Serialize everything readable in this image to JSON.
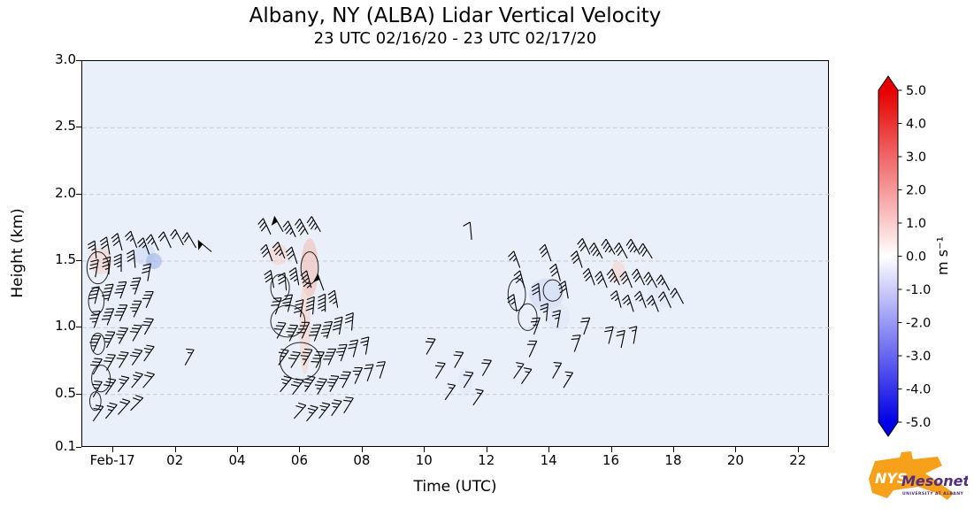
{
  "figure": {
    "title": "Albany, NY (ALBA) Lidar Vertical Velocity",
    "subtitle": "23 UTC 02/16/20 - 23 UTC 02/17/20"
  },
  "axes": {
    "xlabel": "Time (UTC)",
    "ylabel": "Height (km)",
    "x_ticks": [
      {
        "t": 1,
        "label": "Feb-17"
      },
      {
        "t": 3,
        "label": "02"
      },
      {
        "t": 5,
        "label": "04"
      },
      {
        "t": 7,
        "label": "06"
      },
      {
        "t": 9,
        "label": "08"
      },
      {
        "t": 11,
        "label": "10"
      },
      {
        "t": 13,
        "label": "12"
      },
      {
        "t": 15,
        "label": "14"
      },
      {
        "t": 17,
        "label": "16"
      },
      {
        "t": 19,
        "label": "18"
      },
      {
        "t": 21,
        "label": "20"
      },
      {
        "t": 23,
        "label": "22"
      }
    ],
    "y_ticks": [
      {
        "v": 0.1,
        "label": "0.1"
      },
      {
        "v": 0.5,
        "label": "0.5"
      },
      {
        "v": 1.0,
        "label": "1.0"
      },
      {
        "v": 1.5,
        "label": "1.5"
      },
      {
        "v": 2.0,
        "label": "2.0"
      },
      {
        "v": 2.5,
        "label": "2.5"
      },
      {
        "v": 3.0,
        "label": "3.0"
      }
    ]
  },
  "colorbar": {
    "label": "m s⁻¹",
    "top_color": "#e60000",
    "mid_color": "#ffffff",
    "bottom_color": "#0000e6",
    "ticks": [
      {
        "v": 5,
        "label": "5.0"
      },
      {
        "v": 4,
        "label": "4.0"
      },
      {
        "v": 3,
        "label": "3.0"
      },
      {
        "v": 2,
        "label": "2.0"
      },
      {
        "v": 1,
        "label": "1.0"
      },
      {
        "v": 0,
        "label": "0.0"
      },
      {
        "v": -1,
        "label": "-1.0"
      },
      {
        "v": -2,
        "label": "-2.0"
      },
      {
        "v": -3,
        "label": "-3.0"
      },
      {
        "v": -4,
        "label": "-4.0"
      },
      {
        "v": -5,
        "label": "-5.0"
      }
    ]
  },
  "logo": {
    "nys": "NYS",
    "mesonet": "Mesonet",
    "tagline": "UNIVERSITY AT ALBANY",
    "orange": "#f7a11b",
    "purple": "#522d80"
  },
  "chart_data": {
    "type": "wind_barb_time_height",
    "title": "Albany, NY (ALBA) Lidar Vertical Velocity",
    "subtitle": "23 UTC 02/16/20 - 23 UTC 02/17/20",
    "xlabel": "Time (UTC)",
    "ylabel": "Height (km)",
    "x_start": "23 UTC 02/16/20",
    "x_hours_range": [
      0,
      24
    ],
    "ylim": [
      0.1,
      3.0
    ],
    "colormap": "blue-white-red",
    "color_range": [
      -5,
      5
    ],
    "color_units": "m s⁻¹",
    "background_fill": "#e9f0f9",
    "grid": "dashed horizontal at 0.5 km intervals",
    "barb_format": "[hours_after_23UTC_02/16, height_km, staff_angle_deg_ccw_from_east, speed_knots]",
    "barbs": [
      [
        0.35,
        0.3,
        55,
        20
      ],
      [
        0.35,
        0.48,
        60,
        25
      ],
      [
        0.35,
        0.65,
        60,
        30
      ],
      [
        0.35,
        0.82,
        65,
        35
      ],
      [
        0.38,
        1.0,
        70,
        35
      ],
      [
        0.4,
        1.18,
        75,
        40
      ],
      [
        0.42,
        1.38,
        80,
        30
      ],
      [
        0.45,
        1.52,
        95,
        25
      ],
      [
        0.75,
        0.32,
        50,
        25
      ],
      [
        0.75,
        0.5,
        55,
        30
      ],
      [
        0.78,
        0.68,
        60,
        30
      ],
      [
        0.78,
        0.85,
        62,
        35
      ],
      [
        0.8,
        1.02,
        68,
        40
      ],
      [
        0.82,
        1.2,
        72,
        45
      ],
      [
        0.85,
        1.4,
        85,
        35
      ],
      [
        0.88,
        1.55,
        100,
        30
      ],
      [
        1.15,
        0.35,
        48,
        20
      ],
      [
        1.15,
        0.52,
        52,
        25
      ],
      [
        1.18,
        0.7,
        58,
        30
      ],
      [
        1.18,
        0.88,
        60,
        35
      ],
      [
        1.2,
        1.05,
        65,
        40
      ],
      [
        1.22,
        1.22,
        70,
        40
      ],
      [
        1.25,
        1.42,
        90,
        35
      ],
      [
        1.28,
        1.58,
        105,
        30
      ],
      [
        1.55,
        0.38,
        45,
        20
      ],
      [
        1.58,
        0.55,
        50,
        25
      ],
      [
        1.6,
        0.72,
        55,
        30
      ],
      [
        1.62,
        0.9,
        60,
        30
      ],
      [
        1.65,
        1.08,
        64,
        35
      ],
      [
        1.68,
        1.25,
        70,
        35
      ],
      [
        1.7,
        1.45,
        95,
        30
      ],
      [
        1.75,
        1.6,
        110,
        25
      ],
      [
        1.95,
        0.55,
        50,
        20
      ],
      [
        1.98,
        0.75,
        55,
        25
      ],
      [
        2.0,
        0.95,
        60,
        30
      ],
      [
        2.05,
        1.15,
        66,
        30
      ],
      [
        2.1,
        1.35,
        80,
        30
      ],
      [
        2.15,
        1.55,
        110,
        25
      ],
      [
        2.45,
        1.58,
        115,
        25
      ],
      [
        2.85,
        1.6,
        115,
        20
      ],
      [
        3.25,
        1.62,
        118,
        20
      ],
      [
        3.65,
        1.6,
        120,
        20
      ],
      [
        3.3,
        0.72,
        60,
        15
      ],
      [
        4.15,
        1.57,
        140,
        50
      ],
      [
        6.05,
        1.7,
        115,
        30
      ],
      [
        6.45,
        1.72,
        120,
        50
      ],
      [
        6.85,
        1.68,
        115,
        35
      ],
      [
        7.25,
        1.7,
        118,
        40
      ],
      [
        7.65,
        1.72,
        120,
        35
      ],
      [
        6.1,
        1.5,
        110,
        30
      ],
      [
        6.5,
        1.52,
        112,
        35
      ],
      [
        6.9,
        1.48,
        108,
        30
      ],
      [
        6.15,
        1.3,
        100,
        30
      ],
      [
        6.55,
        1.28,
        95,
        30
      ],
      [
        6.95,
        1.32,
        100,
        35
      ],
      [
        7.35,
        1.3,
        105,
        45
      ],
      [
        7.75,
        1.28,
        110,
        50
      ],
      [
        6.2,
        1.1,
        70,
        30
      ],
      [
        6.6,
        1.12,
        75,
        35
      ],
      [
        7.0,
        1.08,
        80,
        40
      ],
      [
        7.4,
        1.1,
        85,
        40
      ],
      [
        7.8,
        1.12,
        90,
        45
      ],
      [
        8.2,
        1.15,
        100,
        35
      ],
      [
        6.25,
        0.92,
        60,
        30
      ],
      [
        6.65,
        0.9,
        62,
        35
      ],
      [
        7.05,
        0.92,
        65,
        40
      ],
      [
        7.45,
        0.9,
        68,
        40
      ],
      [
        7.85,
        0.92,
        72,
        45
      ],
      [
        8.25,
        0.95,
        80,
        40
      ],
      [
        8.65,
        0.98,
        85,
        30
      ],
      [
        6.3,
        0.72,
        55,
        25
      ],
      [
        6.7,
        0.7,
        58,
        30
      ],
      [
        7.1,
        0.72,
        60,
        35
      ],
      [
        7.5,
        0.7,
        62,
        40
      ],
      [
        7.9,
        0.72,
        65,
        40
      ],
      [
        8.3,
        0.75,
        70,
        35
      ],
      [
        8.7,
        0.78,
        75,
        30
      ],
      [
        9.1,
        0.8,
        80,
        25
      ],
      [
        6.35,
        0.52,
        50,
        25
      ],
      [
        6.75,
        0.5,
        52,
        30
      ],
      [
        7.15,
        0.52,
        55,
        35
      ],
      [
        7.55,
        0.5,
        58,
        35
      ],
      [
        7.95,
        0.52,
        60,
        35
      ],
      [
        8.35,
        0.55,
        62,
        30
      ],
      [
        8.75,
        0.58,
        65,
        25
      ],
      [
        9.15,
        0.6,
        70,
        20
      ],
      [
        9.55,
        0.62,
        72,
        20
      ],
      [
        6.8,
        0.32,
        48,
        20
      ],
      [
        7.2,
        0.3,
        50,
        25
      ],
      [
        7.6,
        0.32,
        52,
        25
      ],
      [
        8.0,
        0.34,
        55,
        25
      ],
      [
        8.4,
        0.36,
        58,
        20
      ],
      [
        11.05,
        0.8,
        60,
        20
      ],
      [
        11.35,
        0.62,
        58,
        20
      ],
      [
        11.65,
        0.46,
        55,
        18
      ],
      [
        11.95,
        0.7,
        60,
        22
      ],
      [
        12.25,
        0.55,
        58,
        20
      ],
      [
        12.55,
        0.42,
        55,
        18
      ],
      [
        12.85,
        0.64,
        60,
        20
      ],
      [
        12.5,
        1.66,
        95,
        10
      ],
      [
        13.85,
        0.62,
        55,
        15
      ],
      [
        14.1,
        0.58,
        55,
        15
      ],
      [
        13.95,
        1.12,
        100,
        25
      ],
      [
        14.2,
        1.3,
        105,
        30
      ],
      [
        14.05,
        1.45,
        110,
        25
      ],
      [
        14.5,
        0.95,
        70,
        25
      ],
      [
        14.35,
        0.78,
        65,
        20
      ],
      [
        14.7,
        1.2,
        95,
        30
      ],
      [
        14.9,
        1.05,
        85,
        25
      ],
      [
        15.05,
        1.5,
        110,
        30
      ],
      [
        15.35,
        1.35,
        105,
        30
      ],
      [
        15.6,
        1.22,
        100,
        30
      ],
      [
        15.25,
        1.0,
        80,
        25
      ],
      [
        15.8,
        0.82,
        70,
        20
      ],
      [
        16.05,
        1.45,
        108,
        30
      ],
      [
        15.1,
        0.62,
        60,
        18
      ],
      [
        15.45,
        0.55,
        58,
        15
      ],
      [
        16.3,
        1.55,
        115,
        30
      ],
      [
        16.7,
        1.52,
        118,
        35
      ],
      [
        17.1,
        1.55,
        120,
        35
      ],
      [
        17.5,
        1.52,
        118,
        30
      ],
      [
        17.9,
        1.55,
        120,
        35
      ],
      [
        18.3,
        1.52,
        122,
        30
      ],
      [
        16.45,
        1.32,
        110,
        30
      ],
      [
        16.85,
        1.3,
        112,
        30
      ],
      [
        17.25,
        1.32,
        115,
        35
      ],
      [
        17.65,
        1.3,
        112,
        30
      ],
      [
        18.05,
        1.32,
        115,
        30
      ],
      [
        18.45,
        1.3,
        118,
        30
      ],
      [
        18.85,
        1.28,
        118,
        25
      ],
      [
        17.3,
        1.15,
        105,
        25
      ],
      [
        17.7,
        1.12,
        108,
        25
      ],
      [
        18.1,
        1.15,
        110,
        25
      ],
      [
        18.5,
        1.12,
        112,
        25
      ],
      [
        18.9,
        1.15,
        115,
        20
      ],
      [
        19.3,
        1.18,
        118,
        20
      ],
      [
        16.1,
        0.95,
        70,
        20
      ],
      [
        16.9,
        0.88,
        75,
        20
      ],
      [
        17.3,
        0.85,
        78,
        20
      ],
      [
        17.7,
        0.88,
        80,
        18
      ]
    ],
    "contour_format": "[t_center_h, height_center_km, t_radius_h, height_radius_km]",
    "contours": [
      [
        0.5,
        1.45,
        0.35,
        0.12
      ],
      [
        0.45,
        1.2,
        0.25,
        0.1
      ],
      [
        0.6,
        0.62,
        0.3,
        0.1
      ],
      [
        0.5,
        0.88,
        0.22,
        0.08
      ],
      [
        0.42,
        0.45,
        0.18,
        0.07
      ],
      [
        6.6,
        1.05,
        0.55,
        0.12
      ],
      [
        7.0,
        0.75,
        0.65,
        0.14
      ],
      [
        6.35,
        1.3,
        0.3,
        0.1
      ],
      [
        7.3,
        1.45,
        0.28,
        0.12
      ],
      [
        13.95,
        1.25,
        0.28,
        0.12
      ],
      [
        14.3,
        1.08,
        0.3,
        0.1
      ],
      [
        15.1,
        1.28,
        0.3,
        0.08
      ]
    ],
    "patch_format": "[t_center_h, height_center_km, t_radius_h, height_radius_km, fill]",
    "shading_patches": [
      [
        7.3,
        1.45,
        0.28,
        0.22,
        "#f3beb2"
      ],
      [
        7.15,
        1.0,
        0.18,
        0.35,
        "#f7d2c9"
      ],
      [
        0.6,
        1.5,
        0.35,
        0.1,
        "#f7d2c9"
      ],
      [
        2.0,
        1.55,
        0.35,
        0.08,
        "#cfdbf2"
      ],
      [
        2.3,
        1.5,
        0.25,
        0.06,
        "#9fb4e8"
      ],
      [
        14.9,
        1.25,
        0.55,
        0.12,
        "#cfdbf2"
      ],
      [
        15.3,
        1.08,
        0.35,
        0.1,
        "#dfe7f6"
      ],
      [
        17.2,
        1.42,
        0.22,
        0.08,
        "#f7d2c9"
      ],
      [
        18.6,
        1.25,
        0.45,
        0.1,
        "#dfe7f6"
      ],
      [
        12.3,
        0.6,
        0.22,
        0.1,
        "#dfe7f6"
      ],
      [
        6.3,
        1.55,
        0.3,
        0.08,
        "#f7d2c9"
      ]
    ]
  }
}
